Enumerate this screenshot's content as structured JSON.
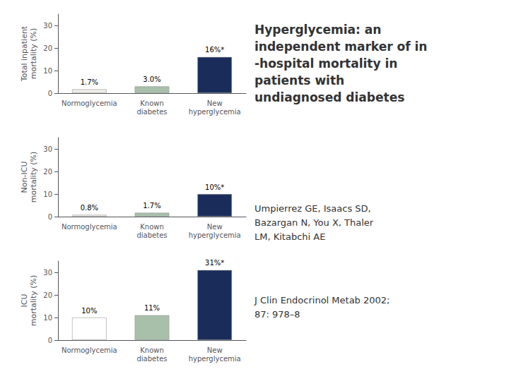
{
  "title": "Hyperglycemia: an\nindependent marker of in\n-hospital mortality in\npatients with\nundiagnosed diabetes",
  "annotations": [
    "Umpierrez GE, Isaacs SD,\nBazargan N, You X, Thaler\nLM, Kitabchi AE",
    "J Clin Endocrinol Metab 2002;\n87: 978–8"
  ],
  "chart_data": [
    {
      "type": "bar",
      "ylabel": "Total inpatient\nmortality (%)",
      "categories": [
        "Normoglycemia",
        "Known\ndiabetes",
        "New\nhyperglycemia"
      ],
      "values": [
        1.7,
        3.0,
        16
      ],
      "value_labels": [
        "1.7%",
        "3.0%",
        "16%*"
      ],
      "data_labels": true,
      "colors": [
        "#f0ede8",
        "#a8bfaa",
        "#1a2d5a"
      ],
      "ylim": [
        0,
        35
      ],
      "yticks": [
        0,
        10,
        20,
        30
      ],
      "grid": false
    },
    {
      "type": "bar",
      "ylabel": "Non-ICU\nmortality (%)",
      "categories": [
        "Normoglycemia",
        "Known\ndiabetes",
        "New\nhyperglycemia"
      ],
      "values": [
        0.8,
        1.7,
        10
      ],
      "value_labels": [
        "0.8%",
        "1.7%",
        "10%*"
      ],
      "data_labels": true,
      "colors": [
        "#f0ede8",
        "#a8bfaa",
        "#1a2d5a"
      ],
      "ylim": [
        0,
        35
      ],
      "yticks": [
        0,
        10,
        20,
        30
      ],
      "grid": false
    },
    {
      "type": "bar",
      "ylabel": "ICU\nmortality (%)",
      "categories": [
        "Normoglycemia",
        "Known\ndiabetes",
        "New\nhyperglycemia"
      ],
      "values": [
        10,
        11,
        31
      ],
      "value_labels": [
        "10%",
        "11%",
        "31%*"
      ],
      "data_labels": true,
      "colors": [
        "#ffffff",
        "#a8bfaa",
        "#1a2d5a"
      ],
      "ylim": [
        0,
        35
      ],
      "yticks": [
        0,
        10,
        20,
        30
      ],
      "grid": false
    }
  ]
}
